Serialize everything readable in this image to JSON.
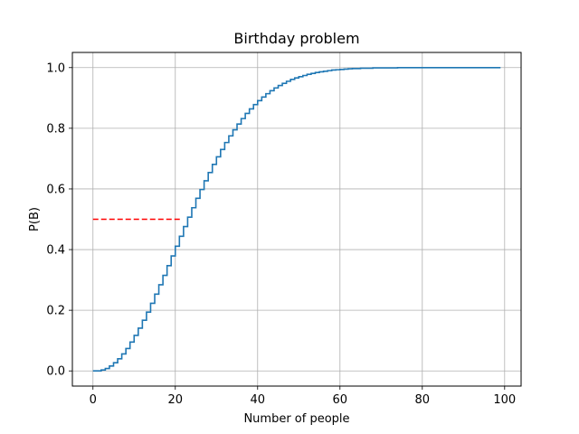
{
  "chart_data": {
    "type": "line",
    "title": "Birthday problem",
    "xlabel": "Number of people",
    "ylabel": "P(B)",
    "xlim": [
      -5,
      104
    ],
    "ylim": [
      -0.05,
      1.05
    ],
    "grid": true,
    "x_ticks": [
      0,
      20,
      40,
      60,
      80,
      100
    ],
    "y_ticks": [
      0.0,
      0.2,
      0.4,
      0.6,
      0.8,
      1.0
    ],
    "x_tick_labels": [
      "0",
      "20",
      "40",
      "60",
      "80",
      "100"
    ],
    "y_tick_labels": [
      "0.0",
      "0.2",
      "0.4",
      "0.6",
      "0.8",
      "1.0"
    ],
    "series": [
      {
        "style": "step-post",
        "color": "#1f77b4",
        "x": [
          0,
          1,
          2,
          3,
          4,
          5,
          6,
          7,
          8,
          9,
          10,
          11,
          12,
          13,
          14,
          15,
          16,
          17,
          18,
          19,
          20,
          21,
          22,
          23,
          24,
          25,
          26,
          27,
          28,
          29,
          30,
          31,
          32,
          33,
          34,
          35,
          36,
          37,
          38,
          39,
          40,
          41,
          42,
          43,
          44,
          45,
          46,
          47,
          48,
          49,
          50,
          51,
          52,
          53,
          54,
          55,
          56,
          57,
          58,
          59,
          60,
          61,
          62,
          63,
          64,
          65,
          66,
          67,
          68,
          69,
          70,
          71,
          72,
          73,
          74,
          75,
          76,
          77,
          78,
          79,
          80,
          81,
          82,
          83,
          84,
          85,
          86,
          87,
          88,
          89,
          90,
          91,
          92,
          93,
          94,
          95,
          96,
          97,
          98,
          99
        ],
        "y": [
          0.0,
          0.0,
          0.003,
          0.008,
          0.016,
          0.027,
          0.04,
          0.056,
          0.074,
          0.095,
          0.117,
          0.141,
          0.167,
          0.194,
          0.223,
          0.253,
          0.284,
          0.315,
          0.347,
          0.379,
          0.411,
          0.444,
          0.476,
          0.507,
          0.538,
          0.569,
          0.598,
          0.627,
          0.654,
          0.681,
          0.706,
          0.73,
          0.753,
          0.775,
          0.795,
          0.814,
          0.832,
          0.849,
          0.864,
          0.878,
          0.891,
          0.903,
          0.914,
          0.924,
          0.933,
          0.941,
          0.948,
          0.955,
          0.961,
          0.966,
          0.97,
          0.974,
          0.978,
          0.981,
          0.984,
          0.986,
          0.988,
          0.99,
          0.992,
          0.993,
          0.994,
          0.995,
          0.996,
          0.997,
          0.997,
          0.998,
          0.998,
          0.998,
          0.999,
          0.999,
          0.999,
          0.999,
          0.999,
          0.999,
          1.0,
          1.0,
          1.0,
          1.0,
          1.0,
          1.0,
          1.0,
          1.0,
          1.0,
          1.0,
          1.0,
          1.0,
          1.0,
          1.0,
          1.0,
          1.0,
          1.0,
          1.0,
          1.0,
          1.0,
          1.0,
          1.0,
          1.0,
          1.0,
          1.0,
          1.0
        ]
      },
      {
        "style": "dashed",
        "color": "#ff0000",
        "x": [
          0,
          21.5
        ],
        "y": [
          0.5,
          0.5
        ]
      }
    ]
  }
}
